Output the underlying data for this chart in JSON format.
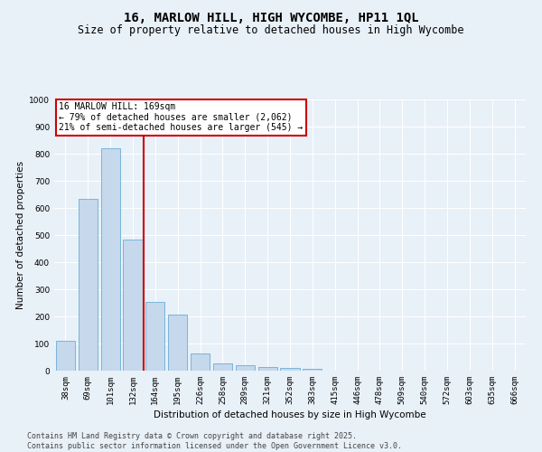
{
  "title": "16, MARLOW HILL, HIGH WYCOMBE, HP11 1QL",
  "subtitle": "Size of property relative to detached houses in High Wycombe",
  "xlabel": "Distribution of detached houses by size in High Wycombe",
  "ylabel": "Number of detached properties",
  "bar_labels": [
    "38sqm",
    "69sqm",
    "101sqm",
    "132sqm",
    "164sqm",
    "195sqm",
    "226sqm",
    "258sqm",
    "289sqm",
    "321sqm",
    "352sqm",
    "383sqm",
    "415sqm",
    "446sqm",
    "478sqm",
    "509sqm",
    "540sqm",
    "572sqm",
    "603sqm",
    "635sqm",
    "666sqm"
  ],
  "bar_values": [
    110,
    635,
    820,
    483,
    255,
    208,
    65,
    27,
    20,
    14,
    10,
    8,
    0,
    0,
    0,
    0,
    0,
    0,
    0,
    0,
    0
  ],
  "bar_color": "#c5d8ec",
  "bar_edge_color": "#6aaed6",
  "vline_index": 3.5,
  "marker_label": "16 MARLOW HILL: 169sqm",
  "annotation_line1": "← 79% of detached houses are smaller (2,062)",
  "annotation_line2": "21% of semi-detached houses are larger (545) →",
  "vline_color": "#cc0000",
  "annotation_box_color": "#ffffff",
  "annotation_box_edge": "#cc0000",
  "footer_line1": "Contains HM Land Registry data © Crown copyright and database right 2025.",
  "footer_line2": "Contains public sector information licensed under the Open Government Licence v3.0.",
  "ylim": [
    0,
    1000
  ],
  "yticks": [
    0,
    100,
    200,
    300,
    400,
    500,
    600,
    700,
    800,
    900,
    1000
  ],
  "background_color": "#e8f0f8",
  "grid_color": "#ffffff",
  "title_fontsize": 10,
  "subtitle_fontsize": 8.5,
  "axis_label_fontsize": 7.5,
  "tick_fontsize": 6.5,
  "annotation_fontsize": 7,
  "footer_fontsize": 6
}
